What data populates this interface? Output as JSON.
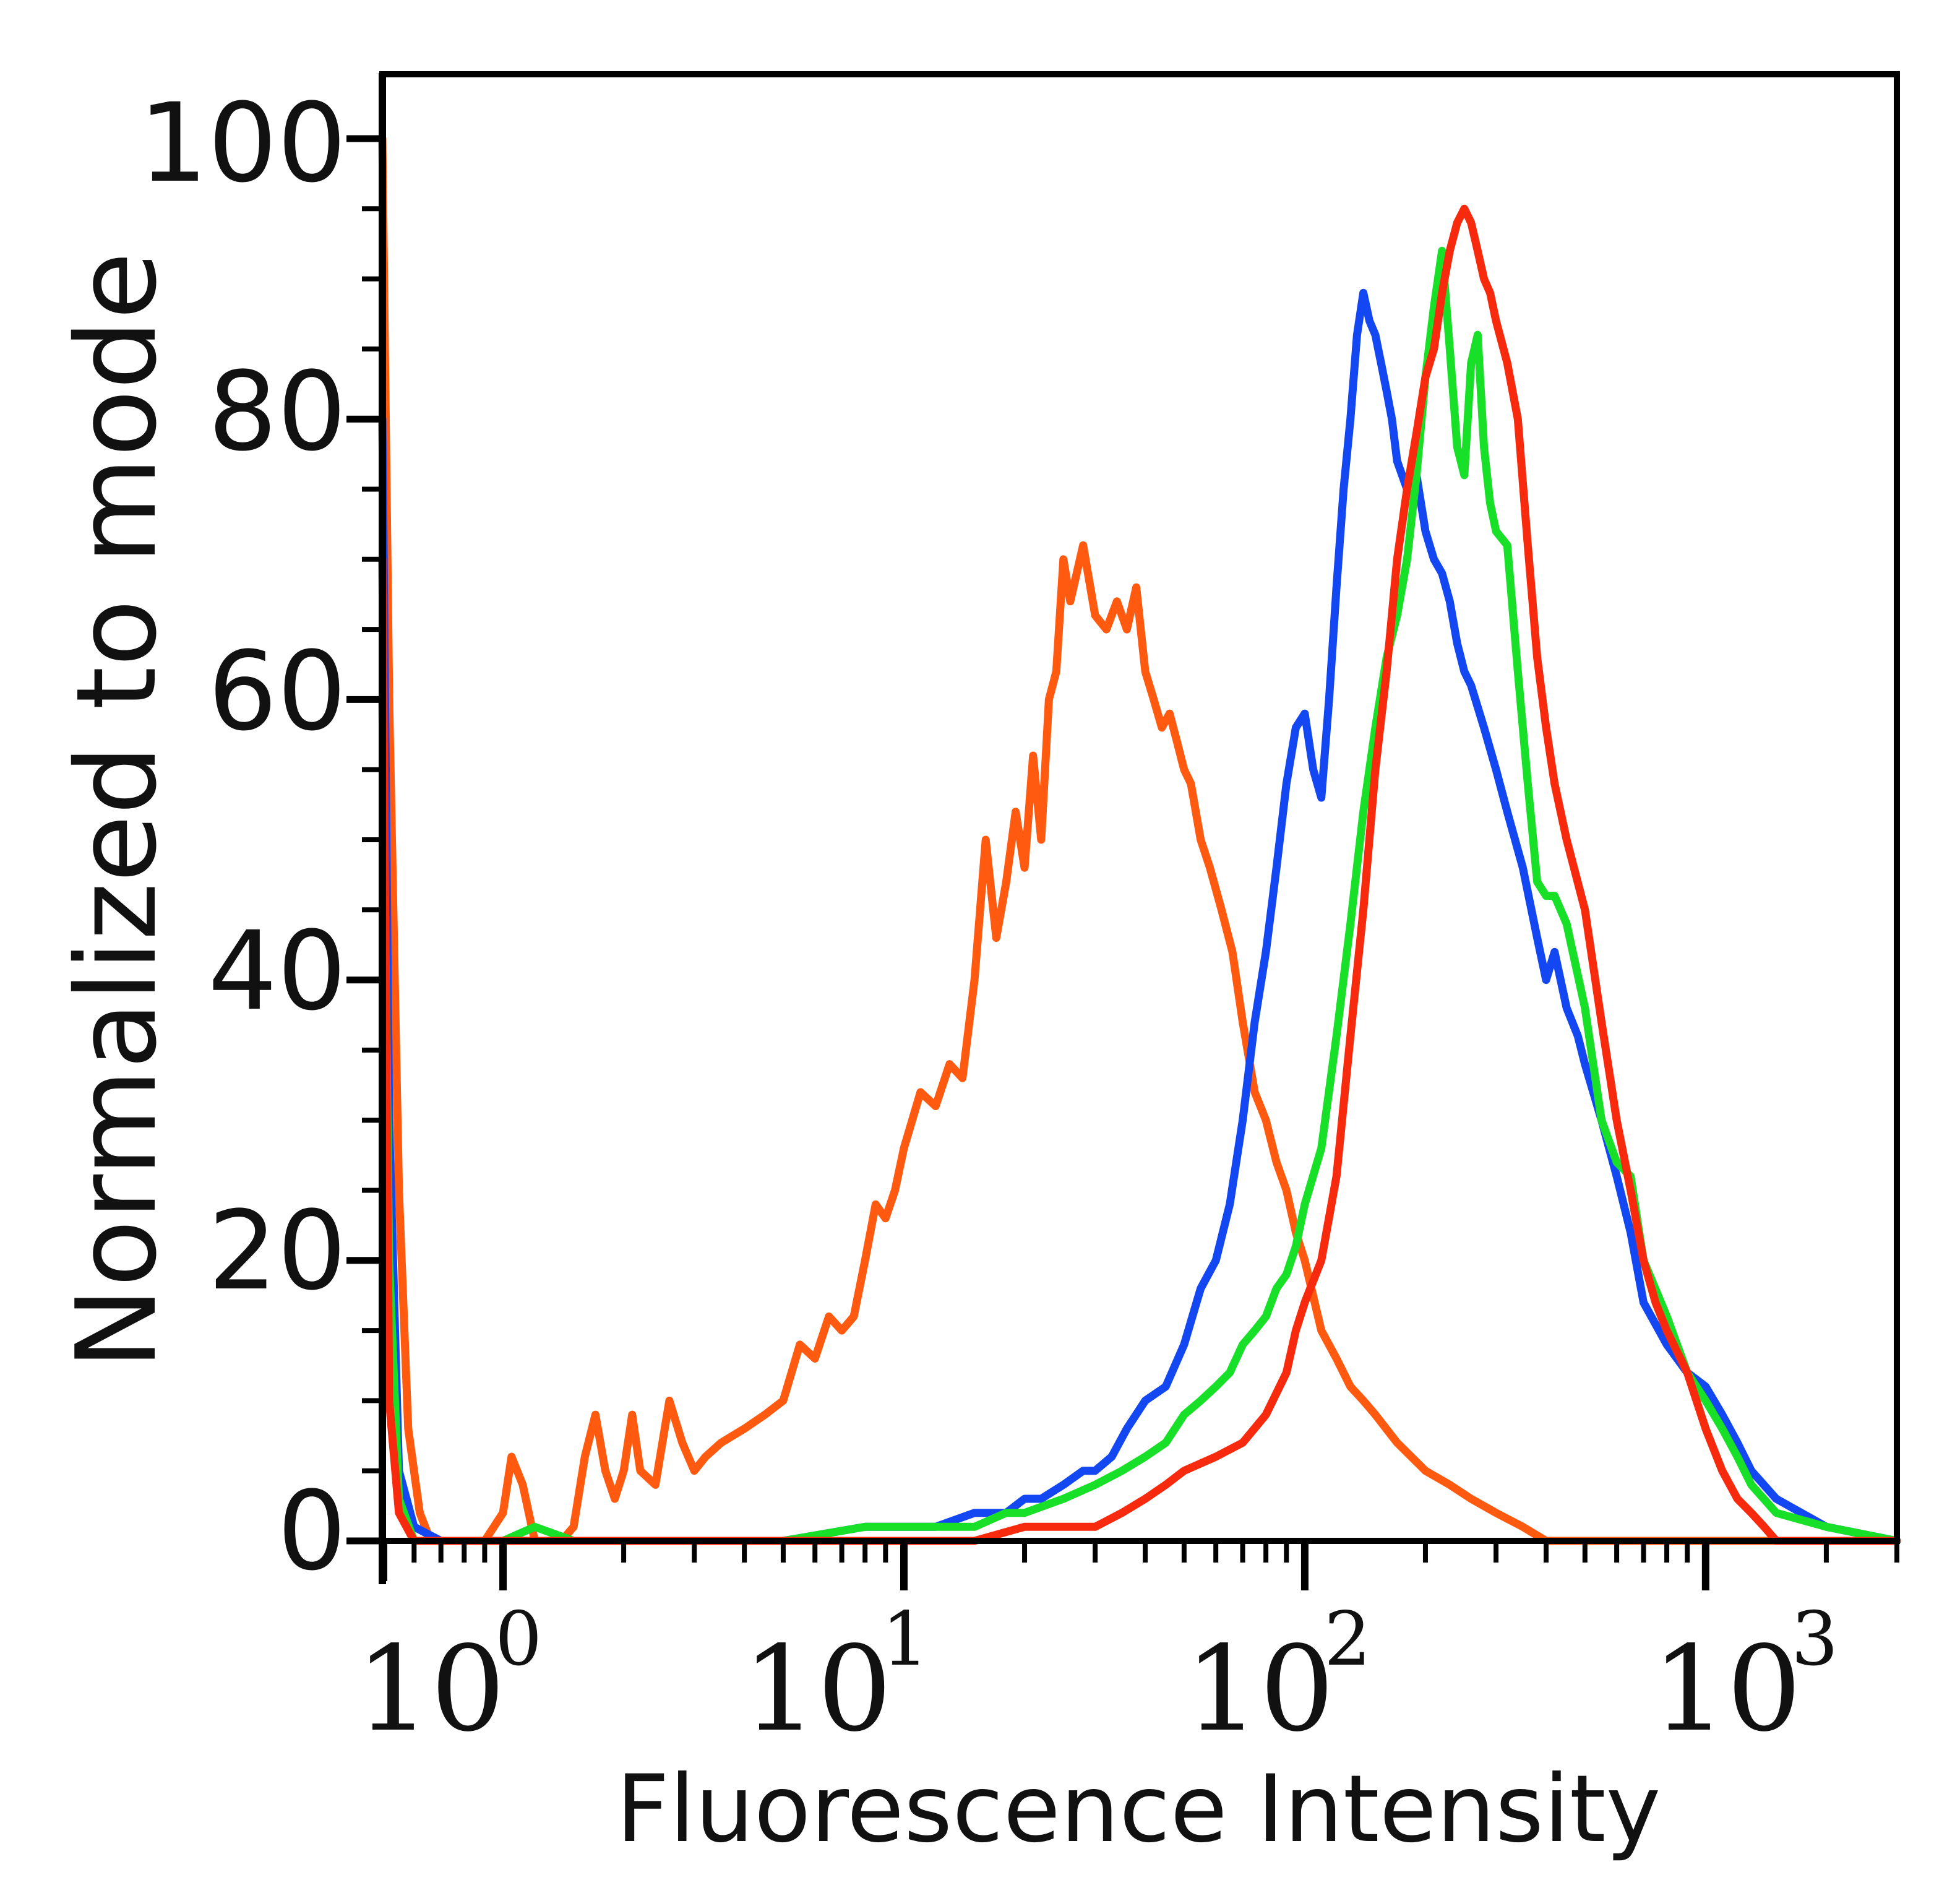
{
  "chart_data": {
    "type": "line",
    "title": "",
    "xlabel": "Fluorescence Intensity",
    "ylabel": "Normalized to mode",
    "x_scale": "log",
    "xlim": [
      0.5,
      3000
    ],
    "ylim": [
      0,
      100
    ],
    "grid": false,
    "legend": "none",
    "y_ticks": [
      "0",
      "20",
      "40",
      "60",
      "80",
      "100"
    ],
    "x_ticks": [
      {
        "base": "10",
        "exp": "0"
      },
      {
        "base": "10",
        "exp": "1"
      },
      {
        "base": "10",
        "exp": "2"
      },
      {
        "base": "10",
        "exp": "3"
      }
    ],
    "series": [
      {
        "name": "orange",
        "color": "#ff5a10",
        "width": 13,
        "x": [
          0.5,
          0.52,
          0.55,
          0.58,
          0.62,
          0.66,
          0.7,
          0.75,
          0.8,
          0.9,
          1.0,
          1.05,
          1.12,
          1.2,
          1.3,
          1.4,
          1.5,
          1.6,
          1.7,
          1.8,
          1.9,
          2.0,
          2.1,
          2.2,
          2.4,
          2.6,
          2.8,
          3.0,
          3.2,
          3.5,
          4.0,
          4.5,
          5.0,
          5.5,
          6.0,
          6.5,
          7.0,
          7.5,
          8.0,
          8.5,
          9.0,
          9.5,
          10.0,
          11.0,
          12.0,
          13.0,
          14.0,
          15.0,
          16.0,
          17.0,
          18.0,
          19.0,
          20.0,
          21.0,
          22.0,
          23.0,
          24.0,
          25.0,
          26.0,
          28.0,
          30.0,
          32.0,
          34.0,
          36.0,
          38.0,
          40.0,
          42.0,
          44.0,
          46.0,
          48.0,
          50.0,
          52.0,
          55.0,
          58.0,
          62.0,
          66.0,
          70.0,
          75.0,
          80.0,
          85.0,
          90.0,
          95.0,
          100.0,
          110.0,
          120.0,
          130.0,
          140.0,
          150.0,
          170.0,
          200.0,
          230.0,
          260.0,
          300.0,
          350.0,
          400.0,
          450.0,
          500.0,
          600.0,
          700.0,
          800.0,
          1000.0,
          1200.0,
          1500.0,
          2000.0,
          3000.0
        ],
        "y": [
          100,
          60,
          25,
          8,
          2,
          0,
          0,
          0,
          0,
          0,
          2,
          6,
          4,
          0,
          0,
          0,
          1,
          6,
          9,
          5,
          3,
          5,
          9,
          5,
          4,
          10,
          7,
          5,
          6,
          7,
          8,
          9,
          10,
          14,
          13,
          16,
          15,
          16,
          20,
          24,
          23,
          25,
          28,
          32,
          31,
          34,
          33,
          40,
          50,
          43,
          47,
          52,
          48,
          56,
          50,
          60,
          62,
          70,
          67,
          71,
          66,
          65,
          67,
          65,
          68,
          62,
          60,
          58,
          59,
          57,
          55,
          54,
          50,
          48,
          45,
          42,
          37,
          32,
          30,
          27,
          25,
          22,
          20,
          15,
          13,
          11,
          10,
          9,
          7,
          5,
          4,
          3,
          2,
          1,
          0,
          0,
          0,
          0,
          0,
          0,
          0,
          0,
          0,
          0,
          0
        ]
      },
      {
        "name": "blue",
        "color": "#1247f2",
        "width": 13,
        "x": [
          0.5,
          0.52,
          0.55,
          0.6,
          0.7,
          0.8,
          1.0,
          2.0,
          3.0,
          5.0,
          8.0,
          10.0,
          12.0,
          15.0,
          18.0,
          20.0,
          22.0,
          25.0,
          28.0,
          30.0,
          33.0,
          36.0,
          40.0,
          45.0,
          50.0,
          55.0,
          60.0,
          65.0,
          70.0,
          75.0,
          80.0,
          85.0,
          90.0,
          95.0,
          100.0,
          105.0,
          110.0,
          115.0,
          120.0,
          125.0,
          130.0,
          135.0,
          140.0,
          145.0,
          150.0,
          155.0,
          160.0,
          165.0,
          170.0,
          180.0,
          190.0,
          200.0,
          210.0,
          220.0,
          230.0,
          240.0,
          250.0,
          260.0,
          280.0,
          300.0,
          320.0,
          350.0,
          380.0,
          400.0,
          420.0,
          450.0,
          480.0,
          500.0,
          550.0,
          600.0,
          650.0,
          700.0,
          800.0,
          900.0,
          1000.0,
          1100.0,
          1200.0,
          1300.0,
          1500.0,
          2000.0,
          3000.0
        ],
        "y": [
          80,
          30,
          5,
          1,
          0,
          0,
          0,
          0,
          0,
          0,
          1,
          1,
          1,
          2,
          2,
          3,
          3,
          4,
          5,
          5,
          6,
          8,
          10,
          11,
          14,
          18,
          20,
          24,
          30,
          37,
          42,
          48,
          54,
          58,
          59,
          55,
          53,
          60,
          68,
          75,
          80,
          86,
          89,
          87,
          86,
          84,
          82,
          80,
          77,
          75,
          76,
          72,
          70,
          69,
          67,
          64,
          62,
          61,
          58,
          55,
          52,
          48,
          43,
          40,
          42,
          38,
          36,
          34,
          30,
          26,
          22,
          17,
          14,
          12,
          11,
          9,
          7,
          5,
          3,
          1,
          0
        ]
      },
      {
        "name": "green",
        "color": "#18e028",
        "width": 13,
        "x": [
          0.5,
          0.52,
          0.55,
          0.6,
          0.7,
          0.8,
          1.0,
          1.2,
          1.5,
          2.0,
          3.0,
          5.0,
          8.0,
          10.0,
          12.0,
          15.0,
          18.0,
          20.0,
          25.0,
          30.0,
          35.0,
          40.0,
          45.0,
          50.0,
          55.0,
          60.0,
          65.0,
          70.0,
          75.0,
          80.0,
          85.0,
          90.0,
          95.0,
          100.0,
          110.0,
          120.0,
          130.0,
          140.0,
          150.0,
          160.0,
          170.0,
          180.0,
          190.0,
          200.0,
          210.0,
          220.0,
          230.0,
          240.0,
          250.0,
          260.0,
          270.0,
          280.0,
          290.0,
          300.0,
          320.0,
          340.0,
          360.0,
          380.0,
          400.0,
          420.0,
          450.0,
          500.0,
          550.0,
          600.0,
          650.0,
          700.0,
          800.0,
          900.0,
          1000.0,
          1100.0,
          1200.0,
          1300.0,
          1500.0,
          2000.0,
          3000.0
        ],
        "y": [
          60,
          20,
          3,
          0,
          0,
          0,
          0,
          1,
          0,
          0,
          0,
          0,
          1,
          1,
          1,
          1,
          2,
          2,
          3,
          4,
          5,
          6,
          7,
          9,
          10,
          11,
          12,
          14,
          15,
          16,
          18,
          19,
          21,
          24,
          28,
          36,
          44,
          52,
          58,
          63,
          66,
          70,
          76,
          83,
          88,
          92,
          85,
          78,
          76,
          84,
          86,
          78,
          74,
          72,
          71,
          62,
          54,
          47,
          46,
          46,
          44,
          38,
          30,
          27,
          26,
          20,
          16,
          12,
          10,
          8,
          6,
          4,
          2,
          1,
          0
        ]
      },
      {
        "name": "red",
        "color": "#f82a0e",
        "width": 13,
        "x": [
          0.5,
          0.52,
          0.55,
          0.6,
          0.7,
          0.8,
          1.0,
          2.0,
          5.0,
          10.0,
          15.0,
          20.0,
          25.0,
          30.0,
          35.0,
          40.0,
          45.0,
          50.0,
          60.0,
          70.0,
          80.0,
          90.0,
          95.0,
          100.0,
          110.0,
          120.0,
          130.0,
          140.0,
          150.0,
          160.0,
          170.0,
          180.0,
          190.0,
          200.0,
          210.0,
          220.0,
          230.0,
          240.0,
          250.0,
          260.0,
          270.0,
          280.0,
          290.0,
          300.0,
          320.0,
          340.0,
          360.0,
          380.0,
          400.0,
          420.0,
          450.0,
          500.0,
          550.0,
          600.0,
          650.0,
          700.0,
          750.0,
          800.0,
          900.0,
          1000.0,
          1100.0,
          1200.0,
          1300.0,
          1400.0,
          1500.0,
          1700.0,
          2000.0,
          3000.0
        ],
        "y": [
          70,
          10,
          2,
          0,
          0,
          0,
          0,
          0,
          0,
          0,
          0,
          1,
          1,
          1,
          2,
          3,
          4,
          5,
          6,
          7,
          9,
          12,
          15,
          17,
          20,
          26,
          36,
          45,
          55,
          62,
          70,
          75,
          79,
          83,
          85,
          89,
          92,
          94,
          95,
          94,
          92,
          90,
          89,
          87,
          84,
          80,
          71,
          63,
          58,
          54,
          50,
          45,
          37,
          30,
          25,
          20,
          17,
          15,
          12,
          8,
          5,
          3,
          2,
          1,
          0,
          0,
          0,
          0
        ]
      }
    ]
  }
}
